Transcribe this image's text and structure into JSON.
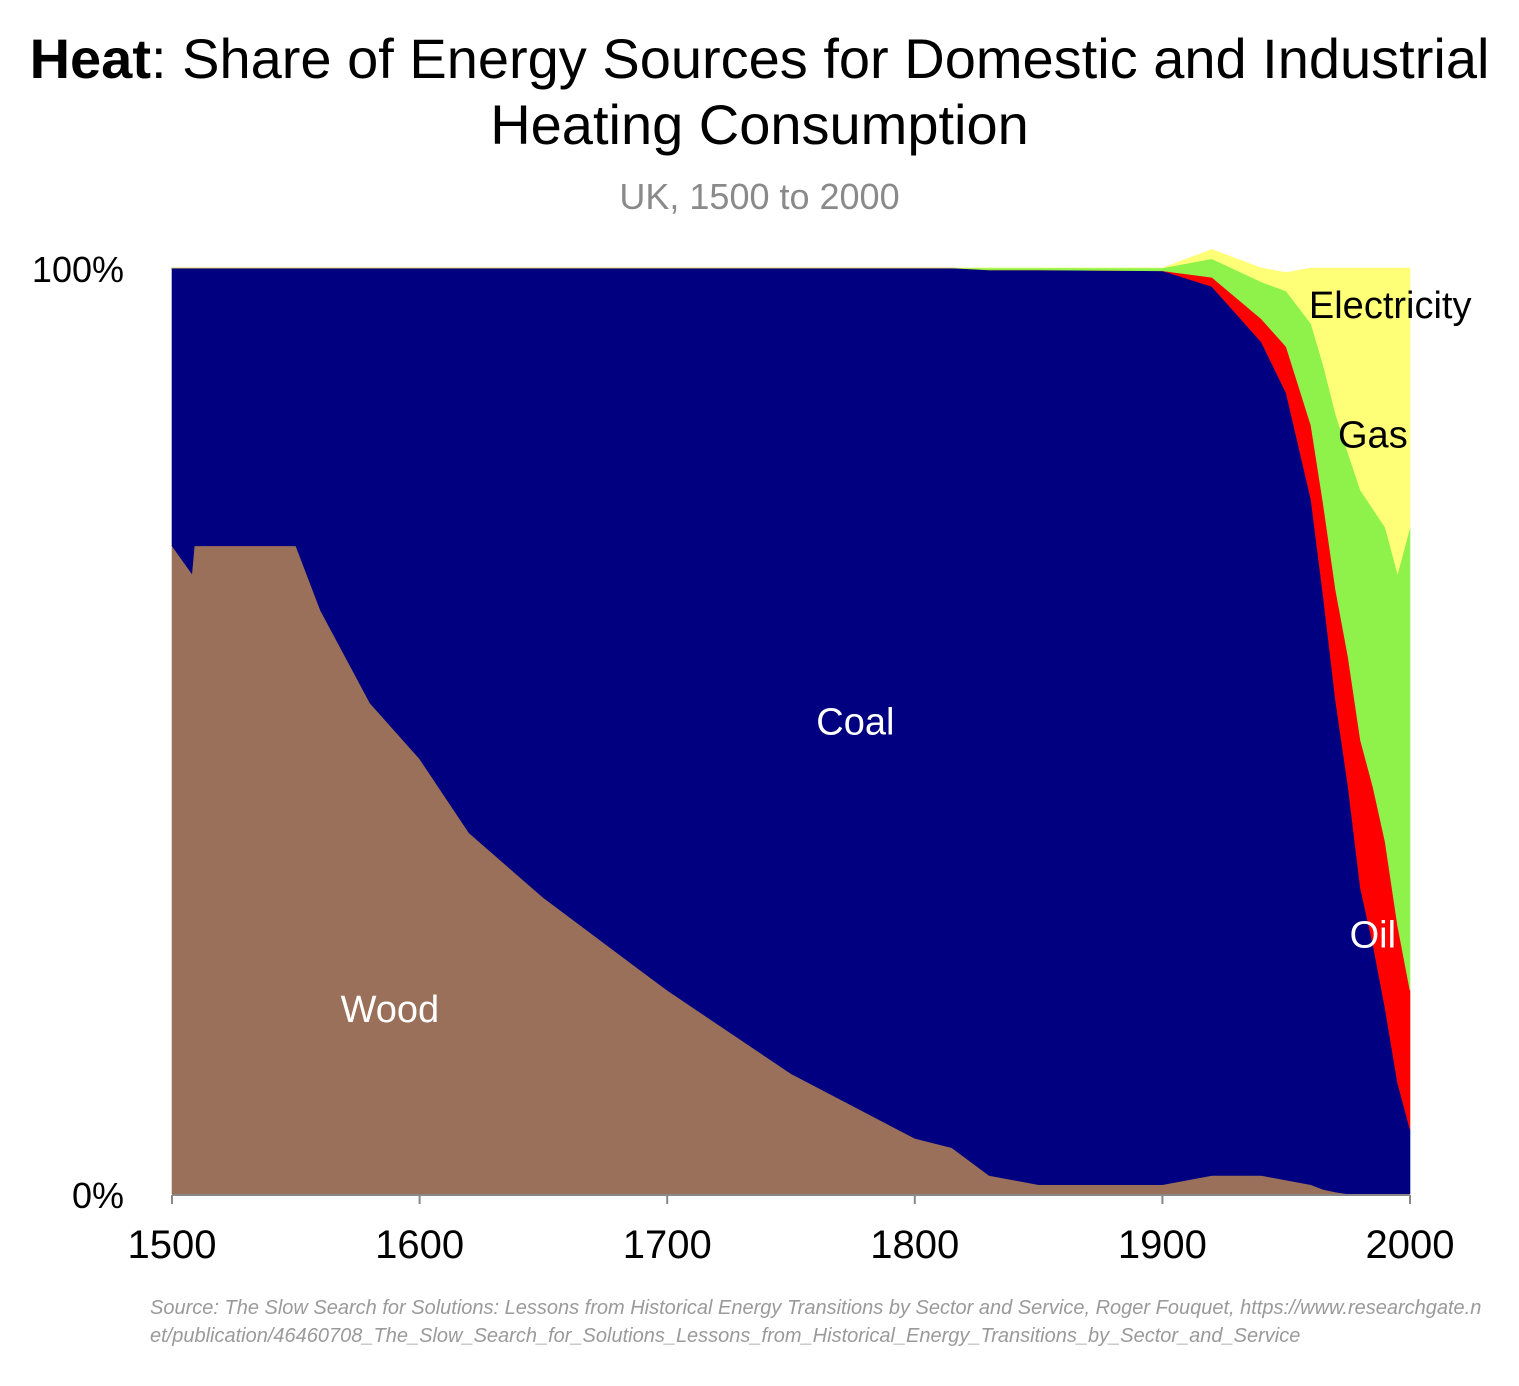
{
  "title": {
    "bold": "Heat",
    "rest": ": Share of Energy Sources for Domestic and Industrial Heating Consumption"
  },
  "subtitle": "UK, 1500 to 2000",
  "source": "Source: The Slow Search for Solutions: Lessons from Historical Energy Transitions by Sector and Service, Roger Fouquet, https://www.researchgate.net/publication/46460708_The_Slow_Search_for_Solutions_Lessons_from_Historical_Energy_Transitions_by_Sector_and_Service",
  "chart_data": {
    "type": "area",
    "stacked": true,
    "normalized": true,
    "title": "Heat: Share of Energy Sources for Domestic and Industrial Heating Consumption",
    "subtitle": "UK, 1500 to 2000",
    "xlabel": "",
    "ylabel": "",
    "xlim": [
      1500,
      2000
    ],
    "ylim": [
      0,
      100
    ],
    "x_ticks": [
      "1500",
      "1600",
      "1700",
      "1800",
      "1900",
      "2000"
    ],
    "y_ticks": [
      "0%",
      "100%"
    ],
    "x": [
      1500,
      1508,
      1509,
      1550,
      1560,
      1580,
      1600,
      1620,
      1650,
      1700,
      1750,
      1800,
      1815,
      1830,
      1850,
      1900,
      1920,
      1940,
      1950,
      1960,
      1965,
      1970,
      1975,
      1980,
      1985,
      1990,
      1995,
      2000
    ],
    "series": [
      {
        "name": "Wood",
        "color": "#9a705a",
        "values": [
          70,
          67,
          70,
          70,
          63,
          53,
          47,
          39,
          32,
          22,
          13,
          6,
          5,
          2,
          1,
          1,
          2,
          2,
          1.5,
          1,
          0.5,
          0.2,
          0,
          0,
          0,
          0,
          0,
          0
        ]
      },
      {
        "name": "Coal",
        "color": "#000080",
        "values": [
          30,
          33,
          30,
          30,
          37,
          47,
          53,
          61,
          68,
          78,
          87,
          94,
          95,
          97.8,
          98.8,
          98.7,
          96,
          90,
          85,
          74,
          64,
          53,
          44,
          33,
          27,
          20,
          12,
          7
        ]
      },
      {
        "name": "Oil",
        "color": "#ff0000",
        "values": [
          0,
          0,
          0,
          0,
          0,
          0,
          0,
          0,
          0,
          0,
          0,
          0,
          0,
          0,
          0,
          0,
          1,
          2.5,
          5,
          8,
          10,
          12,
          14,
          16,
          17,
          18,
          17,
          15
        ]
      },
      {
        "name": "Gas",
        "color": "#8ef24a",
        "values": [
          0,
          0,
          0,
          0,
          0,
          0,
          0,
          0,
          0,
          0,
          0,
          0,
          0,
          0.2,
          0.2,
          0.3,
          2,
          4,
          6,
          11,
          15,
          19,
          22,
          27,
          30,
          34,
          38,
          50
        ]
      },
      {
        "name": "Electricity",
        "color": "#ffff77",
        "values": [
          0,
          0,
          0,
          0,
          0,
          0,
          0,
          0,
          0,
          0,
          0,
          0,
          0,
          0,
          0,
          0,
          1,
          1.5,
          2,
          6,
          10.5,
          15.8,
          20,
          24,
          26,
          28,
          33,
          28
        ]
      }
    ],
    "labels": [
      {
        "text": "Wood",
        "x": 1588,
        "y": 20,
        "color": "#ffffff"
      },
      {
        "text": "Coal",
        "x": 1776,
        "y": 51,
        "color": "#ffffff"
      },
      {
        "text": "Oil",
        "x": 1985,
        "y": 28,
        "color": "#ffffff"
      },
      {
        "text": "Gas",
        "x": 1985,
        "y": 82,
        "color": "#000000"
      },
      {
        "text": "Electricity",
        "x": 1992,
        "y": 96,
        "color": "#000000"
      }
    ]
  }
}
